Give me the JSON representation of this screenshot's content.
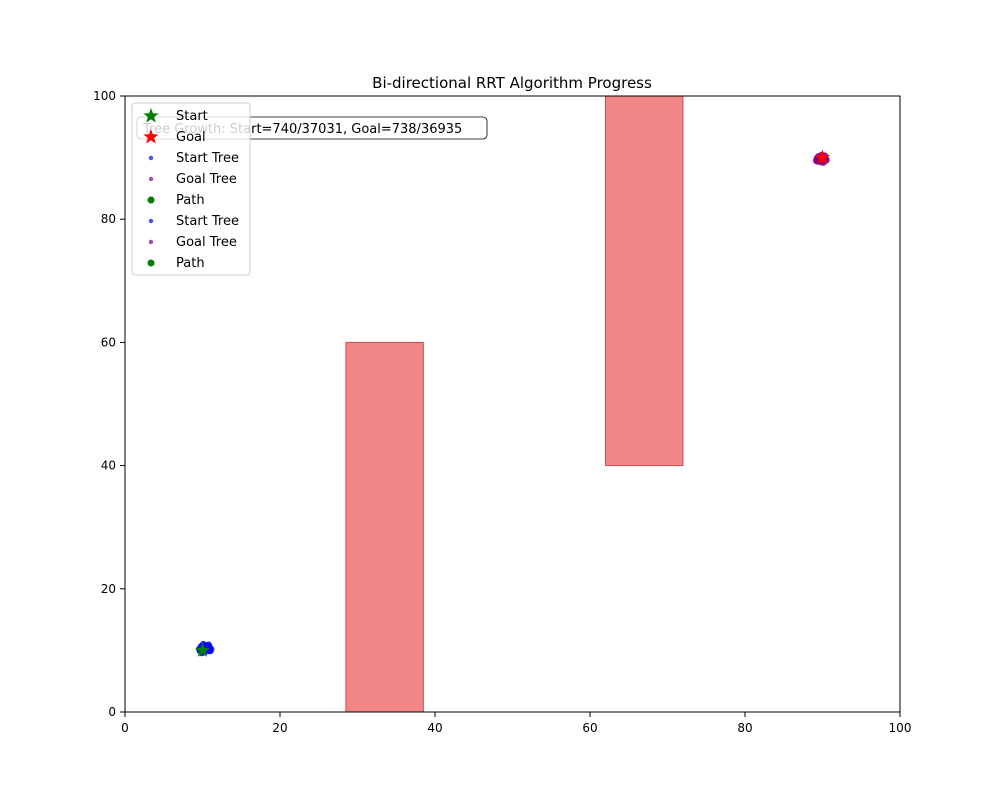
{
  "chart_data": {
    "type": "scatter",
    "title": "Bi-directional RRT Algorithm Progress",
    "xlabel": "",
    "ylabel": "",
    "xlim": [
      0,
      100
    ],
    "ylim": [
      0,
      100
    ],
    "xticks": [
      0,
      20,
      40,
      60,
      80,
      100
    ],
    "yticks": [
      0,
      20,
      40,
      60,
      80,
      100
    ],
    "grid": false,
    "legend_position": "top-left",
    "annotation": "Tree Growth: Start=740/37031, Goal=738/36935",
    "obstacles": [
      {
        "x0": 28.5,
        "x1": 38.5,
        "y0": 0,
        "y1": 60,
        "color": "#f08080"
      },
      {
        "x0": 62,
        "x1": 72,
        "y0": 40,
        "y1": 100,
        "color": "#f08080"
      }
    ],
    "start": {
      "name": "Start",
      "x": 10,
      "y": 10,
      "color": "#008000",
      "marker": "star"
    },
    "goal": {
      "name": "Goal",
      "x": 90,
      "y": 90,
      "color": "#ff0000",
      "marker": "star"
    },
    "series": [
      {
        "name": "Start Tree",
        "color": "#0000ff",
        "marker": "point",
        "points": [
          [
            10.0,
            10.0
          ],
          [
            10.3,
            10.4
          ],
          [
            9.8,
            10.6
          ],
          [
            10.6,
            9.9
          ],
          [
            10.9,
            10.5
          ],
          [
            10.2,
            9.7
          ],
          [
            9.6,
            10.2
          ],
          [
            10.8,
            10.9
          ],
          [
            11.1,
            10.2
          ],
          [
            10.4,
            10.8
          ],
          [
            9.9,
            9.6
          ],
          [
            10.7,
            10.6
          ],
          [
            10.1,
            11.0
          ],
          [
            11.0,
            9.9
          ],
          [
            10.5,
            10.1
          ],
          [
            9.7,
            9.9
          ]
        ]
      },
      {
        "name": "Goal Tree",
        "color": "#800080",
        "marker": "point",
        "points": [
          [
            90.0,
            90.0
          ],
          [
            89.6,
            89.7
          ],
          [
            90.2,
            89.5
          ],
          [
            89.3,
            89.9
          ],
          [
            89.8,
            89.3
          ],
          [
            90.4,
            89.8
          ],
          [
            89.5,
            90.2
          ],
          [
            89.9,
            89.6
          ],
          [
            89.2,
            89.5
          ],
          [
            90.1,
            89.2
          ],
          [
            89.7,
            90.1
          ],
          [
            90.3,
            90.3
          ],
          [
            89.4,
            89.4
          ],
          [
            89.9,
            90.4
          ],
          [
            90.5,
            89.6
          ]
        ]
      },
      {
        "name": "Path",
        "color": "#008000",
        "marker": "circle",
        "points": []
      }
    ],
    "legend_entries": [
      {
        "label": "Start",
        "marker": "star",
        "color": "#008000"
      },
      {
        "label": "Goal",
        "marker": "star",
        "color": "#ff0000"
      },
      {
        "label": "Start Tree",
        "marker": "point",
        "color": "#0000ff"
      },
      {
        "label": "Goal Tree",
        "marker": "point",
        "color": "#800080"
      },
      {
        "label": "Path",
        "marker": "circle",
        "color": "#008000"
      },
      {
        "label": "Start Tree",
        "marker": "point",
        "color": "#0000ff"
      },
      {
        "label": "Goal Tree",
        "marker": "point",
        "color": "#800080"
      },
      {
        "label": "Path",
        "marker": "circle",
        "color": "#008000"
      }
    ]
  }
}
